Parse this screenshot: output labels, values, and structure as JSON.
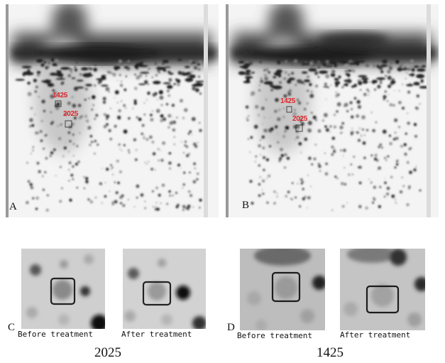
{
  "panels": {
    "a": {
      "letter": "A",
      "spot_labels": [
        "1425",
        "2025"
      ]
    },
    "b": {
      "letter": "B",
      "spot_labels": [
        "1425",
        "2025"
      ]
    },
    "c": {
      "letter": "C",
      "captions": [
        "Before treatment",
        "After treatment"
      ],
      "spot_id": "2025"
    },
    "d": {
      "letter": "D",
      "captions": [
        "Before treatment",
        "After treatment"
      ],
      "spot_id": "1425"
    }
  },
  "colors": {
    "spot_label": "#e0262b",
    "highlight_box": "#222222"
  }
}
